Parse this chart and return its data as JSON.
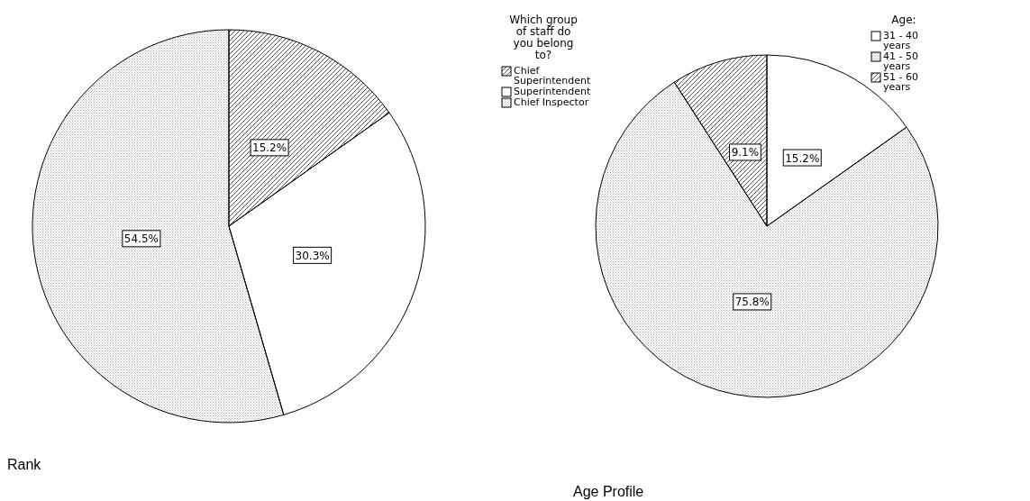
{
  "chart_data": [
    {
      "type": "pie",
      "legend_title": "Which group of staff do you belong to?",
      "categories": [
        "Chief Superintendent",
        "Superintendent",
        "Chief Inspector"
      ],
      "values": [
        15.2,
        30.3,
        54.5
      ],
      "value_labels": [
        "15.2%",
        "30.3%",
        "54.5%"
      ],
      "colors": [
        "#555555",
        "#ffffff",
        "#aaaaaa"
      ],
      "legend": "right",
      "annotations": [
        "Rank"
      ]
    },
    {
      "type": "pie",
      "legend_title": "Age:",
      "categories": [
        "31 - 40 years",
        "41 - 50 years",
        "51 - 60 years"
      ],
      "values": [
        15.2,
        75.8,
        9.1
      ],
      "value_labels": [
        "15.2%",
        "75.8%",
        "9.1%"
      ],
      "colors": [
        "#ffffff",
        "#aaaaaa",
        "#555555"
      ],
      "legend": "right",
      "annotations": [
        "Age Profile"
      ]
    }
  ]
}
